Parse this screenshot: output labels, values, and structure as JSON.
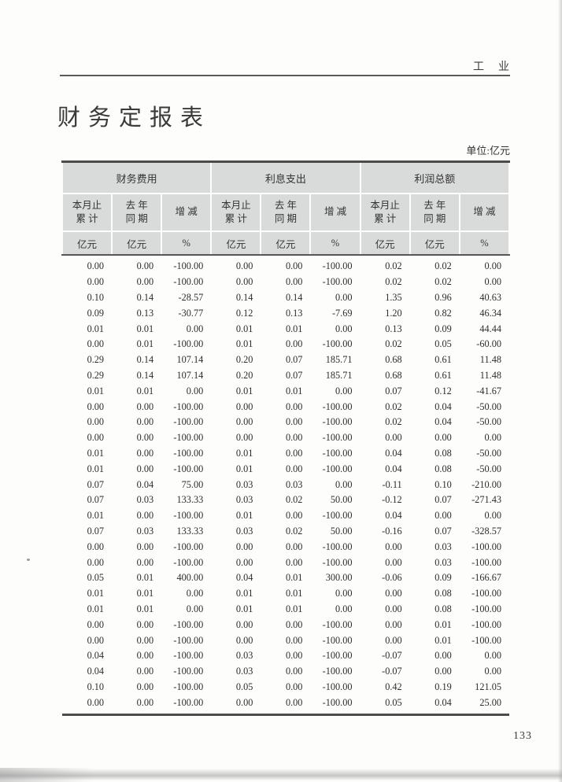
{
  "page": {
    "corner_label": "工业",
    "title": "财务定报表",
    "unit_note": "单位:亿元",
    "page_number": "133"
  },
  "table": {
    "groups": [
      "财务费用",
      "利息支出",
      "利润总额"
    ],
    "sub": {
      "month_l1": "本月止",
      "month_l2": "累 计",
      "prev_l1": "去 年",
      "prev_l2": "同 期",
      "change": "增 减"
    },
    "units": [
      "亿元",
      "亿元",
      "%"
    ],
    "rows": [
      [
        "0.00",
        "0.00",
        "-100.00",
        "0.00",
        "0.00",
        "-100.00",
        "0.02",
        "0.02",
        "0.00"
      ],
      [
        "0.00",
        "0.00",
        "-100.00",
        "0.00",
        "0.00",
        "-100.00",
        "0.02",
        "0.02",
        "0.00"
      ],
      [
        "0.10",
        "0.14",
        "-28.57",
        "0.14",
        "0.14",
        "0.00",
        "1.35",
        "0.96",
        "40.63"
      ],
      [
        "0.09",
        "0.13",
        "-30.77",
        "0.12",
        "0.13",
        "-7.69",
        "1.20",
        "0.82",
        "46.34"
      ],
      [
        "0.01",
        "0.01",
        "0.00",
        "0.01",
        "0.01",
        "0.00",
        "0.13",
        "0.09",
        "44.44"
      ],
      [
        "0.00",
        "0.01",
        "-100.00",
        "0.01",
        "0.00",
        "-100.00",
        "0.02",
        "0.05",
        "-60.00"
      ],
      [
        "0.29",
        "0.14",
        "107.14",
        "0.20",
        "0.07",
        "185.71",
        "0.68",
        "0.61",
        "11.48"
      ],
      [
        "0.29",
        "0.14",
        "107.14",
        "0.20",
        "0.07",
        "185.71",
        "0.68",
        "0.61",
        "11.48"
      ],
      [
        "0.01",
        "0.01",
        "0.00",
        "0.01",
        "0.01",
        "0.00",
        "0.07",
        "0.12",
        "-41.67"
      ],
      [
        "0.00",
        "0.00",
        "-100.00",
        "0.00",
        "0.00",
        "-100.00",
        "0.02",
        "0.04",
        "-50.00"
      ],
      [
        "0.00",
        "0.00",
        "-100.00",
        "0.00",
        "0.00",
        "-100.00",
        "0.02",
        "0.04",
        "-50.00"
      ],
      [
        "0.00",
        "0.00",
        "-100.00",
        "0.00",
        "0.00",
        "-100.00",
        "0.00",
        "0.00",
        "0.00"
      ],
      [
        "0.01",
        "0.00",
        "-100.00",
        "0.01",
        "0.00",
        "-100.00",
        "0.04",
        "0.08",
        "-50.00"
      ],
      [
        "0.01",
        "0.00",
        "-100.00",
        "0.01",
        "0.00",
        "-100.00",
        "0.04",
        "0.08",
        "-50.00"
      ],
      [
        "0.07",
        "0.04",
        "75.00",
        "0.03",
        "0.03",
        "0.00",
        "-0.11",
        "0.10",
        "-210.00"
      ],
      [
        "0.07",
        "0.03",
        "133.33",
        "0.03",
        "0.02",
        "50.00",
        "-0.12",
        "0.07",
        "-271.43"
      ],
      [
        "0.01",
        "0.00",
        "-100.00",
        "0.01",
        "0.00",
        "-100.00",
        "0.04",
        "0.00",
        "0.00"
      ],
      [
        "0.07",
        "0.03",
        "133.33",
        "0.03",
        "0.02",
        "50.00",
        "-0.16",
        "0.07",
        "-328.57"
      ],
      [
        "0.00",
        "0.00",
        "-100.00",
        "0.00",
        "0.00",
        "-100.00",
        "0.00",
        "0.03",
        "-100.00"
      ],
      [
        "0.00",
        "0.00",
        "-100.00",
        "0.00",
        "0.00",
        "-100.00",
        "0.00",
        "0.03",
        "-100.00"
      ],
      [
        "0.05",
        "0.01",
        "400.00",
        "0.04",
        "0.01",
        "300.00",
        "-0.06",
        "0.09",
        "-166.67"
      ],
      [
        "0.01",
        "0.01",
        "0.00",
        "0.01",
        "0.01",
        "0.00",
        "0.00",
        "0.08",
        "-100.00"
      ],
      [
        "0.01",
        "0.01",
        "0.00",
        "0.01",
        "0.01",
        "0.00",
        "0.00",
        "0.08",
        "-100.00"
      ],
      [
        "0.00",
        "0.00",
        "-100.00",
        "0.00",
        "0.00",
        "-100.00",
        "0.00",
        "0.01",
        "-100.00"
      ],
      [
        "0.00",
        "0.00",
        "-100.00",
        "0.00",
        "0.00",
        "-100.00",
        "0.00",
        "0.01",
        "-100.00"
      ],
      [
        "0.04",
        "0.00",
        "-100.00",
        "0.03",
        "0.00",
        "-100.00",
        "-0.07",
        "0.00",
        "0.00"
      ],
      [
        "0.04",
        "0.00",
        "-100.00",
        "0.03",
        "0.00",
        "-100.00",
        "-0.07",
        "0.00",
        "0.00"
      ],
      [
        "0.10",
        "0.00",
        "-100.00",
        "0.05",
        "0.00",
        "-100.00",
        "0.42",
        "0.19",
        "121.05"
      ],
      [
        "0.00",
        "0.00",
        "-100.00",
        "0.00",
        "0.00",
        "-100.00",
        "0.05",
        "0.04",
        "25.00"
      ]
    ]
  },
  "colors": {
    "header_bg": "#d9dbda",
    "rule": "#4c4c4c",
    "text": "#2f2f2f"
  }
}
